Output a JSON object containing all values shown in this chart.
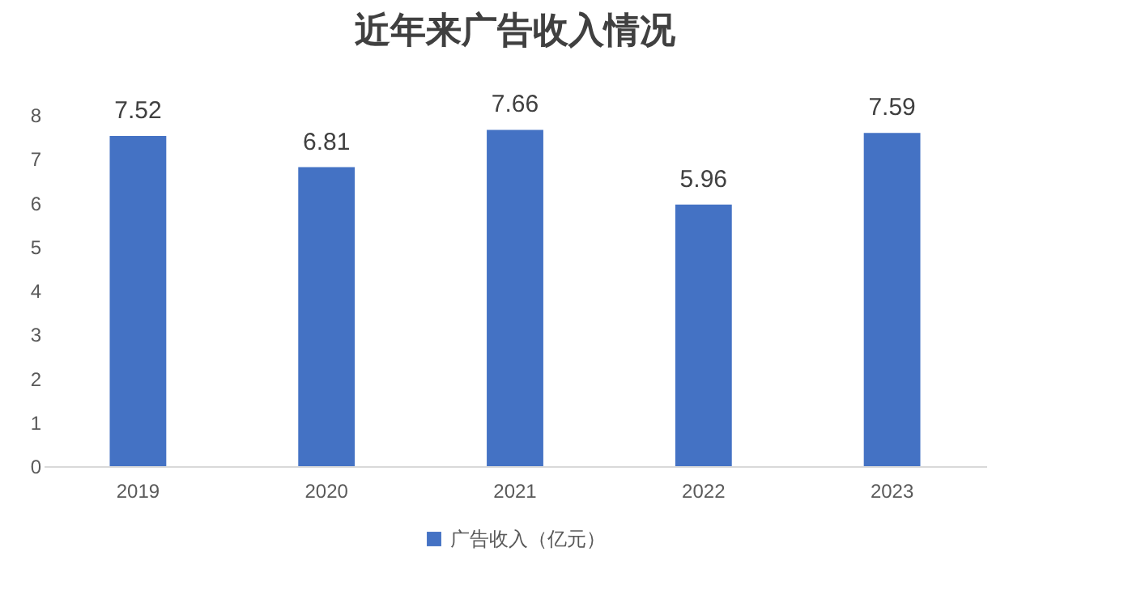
{
  "chart_data": {
    "type": "bar",
    "title": "近年来广告收入情况",
    "categories": [
      "2019",
      "2020",
      "2021",
      "2022",
      "2023"
    ],
    "series": [
      {
        "name": "广告收入（亿元）",
        "color": "#4472c4",
        "values": [
          7.52,
          6.81,
          7.66,
          5.96,
          7.59
        ]
      }
    ],
    "ylim": [
      0,
      8
    ],
    "yticks": [
      0,
      1,
      2,
      3,
      4,
      5,
      6,
      7,
      8
    ],
    "grid": false,
    "legend": "bottom",
    "data_labels": true
  }
}
